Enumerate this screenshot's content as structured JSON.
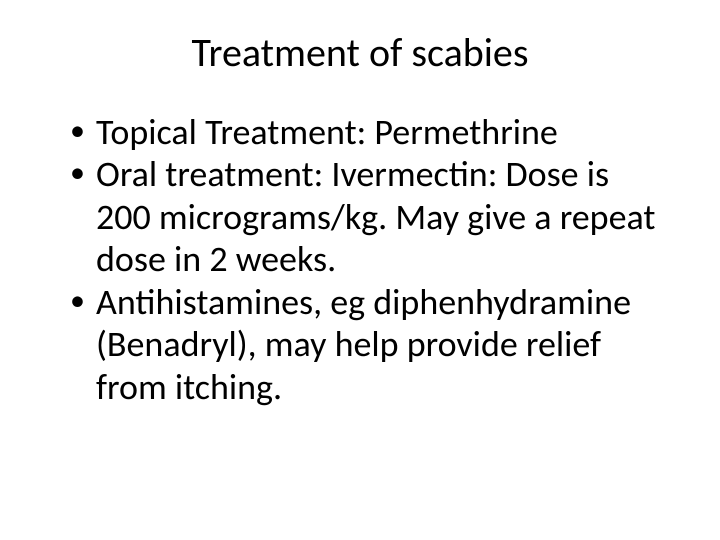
{
  "slide": {
    "title": "Treatment of scabies",
    "bullets": [
      "Topical Treatment: Permethrine",
      "Oral treatment: Ivermectin: Dose is 200 micrograms/kg. May give a repeat dose in 2 weeks.",
      "Antihistamines, eg diphenhydramine (Benadryl), may help provide relief from itching."
    ],
    "colors": {
      "background": "#ffffff",
      "text": "#000000"
    },
    "typography": {
      "title_fontsize": 40,
      "body_fontsize": 36,
      "font_family": "Calibri"
    }
  }
}
